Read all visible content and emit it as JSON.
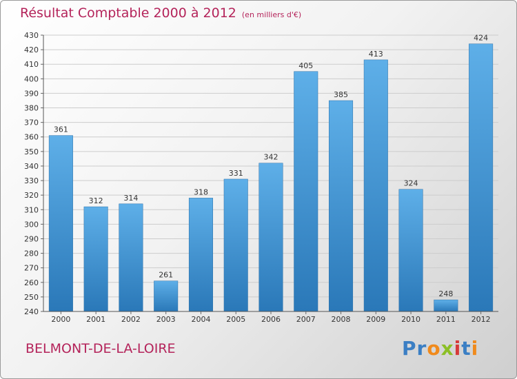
{
  "header": {
    "title": "Résultat Comptable 2000 à 2012",
    "subtitle": "(en milliers d'€)"
  },
  "footer": {
    "commune": "BELMONT-DE-LA-LOIRE",
    "logo": {
      "a": "Pr",
      "b": "o",
      "c": "x",
      "d": "i",
      "e": "t",
      "f": "i"
    }
  },
  "colors": {
    "title": "#b4235a",
    "bar_top": "#5eafe8",
    "bar_bottom": "#2a78b8",
    "grid": "#cccccc"
  },
  "chart_data": {
    "type": "bar",
    "title": "Résultat Comptable 2000 à 2012",
    "subtitle": "(en milliers d'€)",
    "categories": [
      "2000",
      "2001",
      "2002",
      "2003",
      "2004",
      "2005",
      "2006",
      "2007",
      "2008",
      "2009",
      "2010",
      "2011",
      "2012"
    ],
    "values": [
      361,
      312,
      314,
      261,
      318,
      331,
      342,
      405,
      385,
      413,
      324,
      248,
      424
    ],
    "ylim": [
      240,
      430
    ],
    "ytick_step": 10,
    "grid": true,
    "xlabel": "",
    "ylabel": ""
  }
}
